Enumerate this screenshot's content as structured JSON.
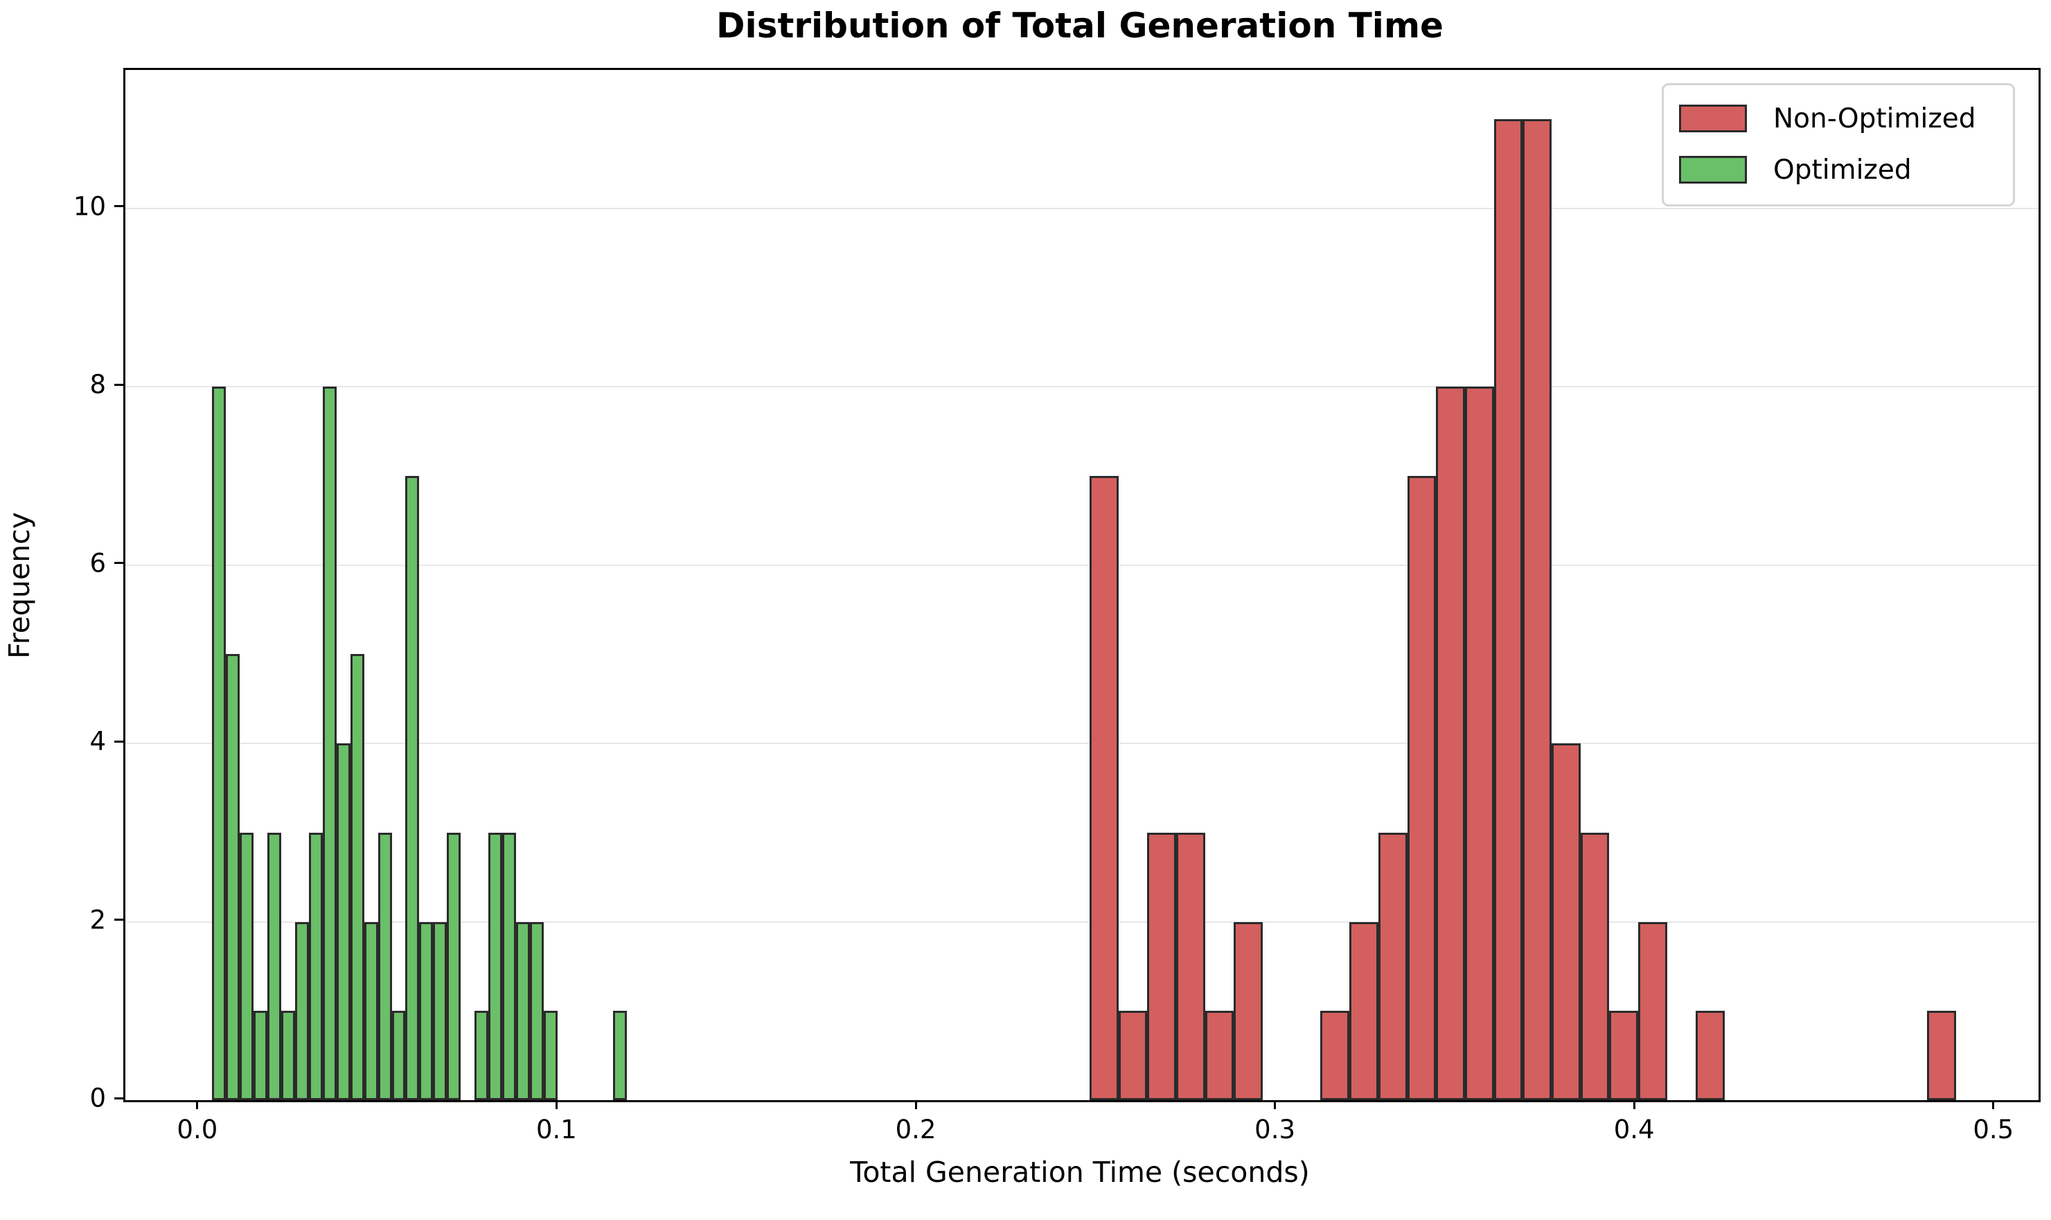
{
  "title": "Distribution of Total Generation Time",
  "xlabel": "Total Generation Time (seconds)",
  "ylabel": "Frequency",
  "legend": {
    "items": [
      {
        "label": "Non-Optimized",
        "color": "#d45f5f"
      },
      {
        "label": "Optimized",
        "color": "#6abf69"
      }
    ]
  },
  "colors": {
    "non_optimized_fill": "#d45f5f",
    "optimized_fill": "#6abf69",
    "bar_edge": "#2b2b2b",
    "gridline": "#e7e7e7",
    "spine": "#000000"
  },
  "chart_data": {
    "type": "bar",
    "subtype": "histogram",
    "title": "Distribution of Total Generation Time",
    "xlabel": "Total Generation Time (seconds)",
    "ylabel": "Frequency",
    "xlim": [
      -0.0206,
      0.512
    ],
    "ylim": [
      0,
      11.55
    ],
    "x_ticks": [
      0.0,
      0.1,
      0.2,
      0.3,
      0.4,
      0.5
    ],
    "x_tick_labels": [
      "0.0",
      "0.1",
      "0.2",
      "0.3",
      "0.4",
      "0.5"
    ],
    "y_ticks": [
      0,
      2,
      4,
      6,
      8,
      10
    ],
    "y_tick_labels": [
      "0",
      "2",
      "4",
      "6",
      "8",
      "10"
    ],
    "grid": "horizontal-only",
    "legend_position": "upper-right",
    "series": [
      {
        "name": "Non-Optimized",
        "fill": "#d45f5f",
        "edge": "#2b2b2b",
        "bin_start": 0.2478,
        "bin_width": 0.00804,
        "counts": [
          7,
          1,
          3,
          3,
          1,
          2,
          0,
          0,
          1,
          2,
          3,
          7,
          8,
          8,
          11,
          11,
          4,
          3,
          1,
          2,
          0,
          1,
          0,
          0,
          0,
          0,
          0,
          0,
          0,
          1
        ]
      },
      {
        "name": "Optimized",
        "fill": "#6abf69",
        "edge": "#2b2b2b",
        "bin_start": 0.0035,
        "bin_width": 0.00385,
        "counts": [
          8,
          5,
          3,
          1,
          3,
          1,
          2,
          3,
          8,
          4,
          5,
          2,
          3,
          1,
          7,
          2,
          2,
          3,
          0,
          1,
          3,
          3,
          2,
          2,
          1,
          0,
          0,
          0,
          0,
          1
        ]
      }
    ]
  }
}
